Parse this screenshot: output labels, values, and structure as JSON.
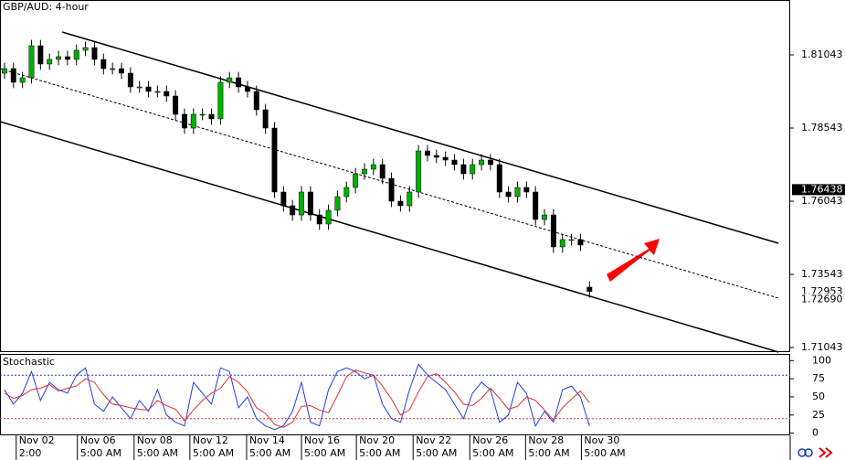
{
  "chart_data": [
    {
      "type": "candlestick",
      "title": "GBP/AUD: 4-hour",
      "up_color": "#00b000",
      "down_color": "#000000",
      "line_color": "#000000",
      "xlim": [
        -0.5,
        87.3
      ],
      "ylim": [
        1.70887,
        1.82918
      ],
      "yticks": [
        1.81043,
        1.78543,
        1.76043,
        1.73543,
        1.71043
      ],
      "xticks": [
        {
          "value": 1.3,
          "label": "Nov 02"
        },
        {
          "value": 8.1,
          "label": "Nov 06"
        },
        {
          "value": 14.4,
          "label": "Nov 08"
        },
        {
          "value": 20.6,
          "label": "Nov 12"
        },
        {
          "value": 26.9,
          "label": "Nov 14"
        },
        {
          "value": 33,
          "label": "Nov 16"
        },
        {
          "value": 39.1,
          "label": "Nov 20"
        },
        {
          "value": 45.4,
          "label": "Nov 22"
        },
        {
          "value": 51.7,
          "label": "Nov 26"
        },
        {
          "value": 57.9,
          "label": "Nov 28"
        },
        {
          "value": 64.1,
          "label": "Nov 30"
        }
      ],
      "xtick_times": [
        "2:00",
        "5:00 AM",
        "5:00 AM",
        "5:00 AM",
        "5:00 AM",
        "5:00 AM",
        "5:00 AM",
        "5:00 AM",
        "5:00 AM",
        "5:00 AM",
        "5:00 AM"
      ],
      "price_tags": [
        {
          "value": 1.76438,
          "label": "1.76438",
          "highlight": true
        },
        {
          "value": 1.72953,
          "label": "1.72953",
          "highlight": false
        },
        {
          "value": 1.7269,
          "label": "1.72690",
          "highlight": false
        }
      ],
      "open": [
        1.80418,
        1.80574,
        1.80106,
        1.80262,
        1.81356,
        1.80731,
        1.80887,
        1.80981,
        1.80887,
        1.81199,
        1.81293,
        1.80887,
        1.80574,
        1.80574,
        1.80418,
        1.79949,
        1.79949,
        1.79793,
        1.79793,
        1.79637,
        1.79012,
        1.78543,
        1.79012,
        1.79012,
        1.78856,
        1.80106,
        1.80262,
        1.79949,
        1.79793,
        1.79168,
        1.78543,
        1.76356,
        1.75887,
        1.75574,
        1.76356,
        1.75574,
        1.75262,
        1.75731,
        1.76199,
        1.76512,
        1.76981,
        1.77137,
        1.77293,
        1.76824,
        1.76043,
        1.75887,
        1.76356,
        1.77762,
        1.77606,
        1.77543,
        1.77449,
        1.77293,
        1.76981,
        1.77293,
        1.77449,
        1.77293,
        1.76356,
        1.76199,
        1.76512,
        1.76356,
        1.75418,
        1.75574,
        1.74481,
        1.74731,
        1.74731,
        1.73106
      ],
      "high": [
        1.80774,
        1.80774,
        1.80462,
        1.81556,
        1.81556,
        1.81087,
        1.81181,
        1.81181,
        1.81399,
        1.81493,
        1.81493,
        1.81087,
        1.80774,
        1.80774,
        1.80618,
        1.80149,
        1.80149,
        1.79993,
        1.79993,
        1.79837,
        1.79212,
        1.79212,
        1.79212,
        1.79212,
        1.80306,
        1.80462,
        1.80462,
        1.80149,
        1.79993,
        1.79368,
        1.78743,
        1.76556,
        1.76087,
        1.76556,
        1.76556,
        1.75774,
        1.75931,
        1.76399,
        1.76712,
        1.77181,
        1.77337,
        1.77493,
        1.77493,
        1.77024,
        1.76243,
        1.76556,
        1.77962,
        1.77962,
        1.77806,
        1.77743,
        1.77649,
        1.77493,
        1.77493,
        1.77649,
        1.77649,
        1.77493,
        1.76556,
        1.76712,
        1.76712,
        1.76556,
        1.75774,
        1.75774,
        1.74931,
        1.74931,
        1.74931,
        1.73306
      ],
      "low": [
        1.80218,
        1.79906,
        1.79906,
        1.80062,
        1.80531,
        1.80531,
        1.80687,
        1.80687,
        1.80687,
        1.80999,
        1.80687,
        1.80374,
        1.80374,
        1.80218,
        1.79749,
        1.79749,
        1.79593,
        1.79593,
        1.79437,
        1.78812,
        1.78343,
        1.78343,
        1.78812,
        1.78656,
        1.78656,
        1.79906,
        1.79749,
        1.79593,
        1.78968,
        1.78343,
        1.76156,
        1.75687,
        1.75374,
        1.75374,
        1.75374,
        1.75062,
        1.75062,
        1.75531,
        1.75999,
        1.76312,
        1.76781,
        1.76937,
        1.76624,
        1.75843,
        1.75687,
        1.75687,
        1.76156,
        1.77406,
        1.77343,
        1.77249,
        1.77093,
        1.76781,
        1.76781,
        1.77093,
        1.77093,
        1.76156,
        1.75999,
        1.75999,
        1.76156,
        1.75218,
        1.75218,
        1.74281,
        1.74281,
        1.74531,
        1.74343,
        1.72753
      ],
      "close": [
        1.80574,
        1.80106,
        1.80262,
        1.81356,
        1.80731,
        1.80887,
        1.80981,
        1.80887,
        1.81199,
        1.81293,
        1.80887,
        1.80574,
        1.80574,
        1.80418,
        1.79949,
        1.79949,
        1.79793,
        1.79793,
        1.79637,
        1.79012,
        1.78543,
        1.79012,
        1.79012,
        1.78856,
        1.80106,
        1.80262,
        1.79949,
        1.79793,
        1.79168,
        1.78543,
        1.76356,
        1.75887,
        1.75574,
        1.76356,
        1.75574,
        1.75262,
        1.75731,
        1.76199,
        1.76512,
        1.76981,
        1.77137,
        1.77293,
        1.76824,
        1.76043,
        1.75887,
        1.76356,
        1.77762,
        1.77606,
        1.77543,
        1.77449,
        1.77293,
        1.76981,
        1.77293,
        1.77449,
        1.77293,
        1.76356,
        1.76199,
        1.76512,
        1.76356,
        1.75418,
        1.75574,
        1.74481,
        1.74731,
        1.74731,
        1.74543,
        1.72953
      ],
      "channel": [
        {
          "x": [
            6.4,
            86
          ],
          "y": [
            1.81824,
            1.74606
          ],
          "dashed": false
        },
        {
          "x": [
            -0.5,
            86
          ],
          "y": [
            1.80574,
            1.72731
          ],
          "dashed": true
        },
        {
          "x": [
            -0.5,
            86
          ],
          "y": [
            1.78762,
            1.70887
          ],
          "dashed": false
        }
      ]
    },
    {
      "type": "line",
      "title": "Stochastic",
      "xlim": [
        -0.5,
        87.3
      ],
      "ylim": [
        -3,
        108
      ],
      "yticks": [
        100,
        75,
        50,
        25,
        0
      ],
      "levels": [
        {
          "value": 80,
          "color": "#3030c0"
        },
        {
          "value": 20,
          "color": "#e03030"
        }
      ],
      "series": [
        {
          "color": "#2040e0",
          "values": [
            60,
            40,
            55,
            85,
            45,
            70,
            60,
            55,
            80,
            90,
            40,
            30,
            50,
            35,
            20,
            45,
            30,
            60,
            25,
            15,
            10,
            70,
            55,
            40,
            90,
            85,
            35,
            50,
            20,
            10,
            5,
            10,
            30,
            70,
            15,
            10,
            60,
            85,
            90,
            85,
            75,
            80,
            40,
            20,
            15,
            60,
            95,
            80,
            70,
            60,
            40,
            20,
            55,
            70,
            60,
            15,
            25,
            70,
            55,
            10,
            30,
            15,
            60,
            65,
            50,
            10
          ]
        },
        {
          "color": "#e03030",
          "values": [
            55,
            48,
            52,
            60,
            62,
            67,
            58,
            62,
            65,
            75,
            70,
            53,
            40,
            38,
            35,
            33,
            32,
            45,
            38,
            33,
            17,
            32,
            45,
            55,
            62,
            78,
            70,
            57,
            35,
            27,
            12,
            8,
            15,
            37,
            38,
            32,
            28,
            52,
            78,
            87,
            83,
            80,
            65,
            47,
            25,
            32,
            57,
            78,
            82,
            70,
            57,
            40,
            38,
            48,
            62,
            48,
            33,
            37,
            50,
            45,
            32,
            18,
            35,
            47,
            58,
            42
          ]
        }
      ]
    }
  ]
}
